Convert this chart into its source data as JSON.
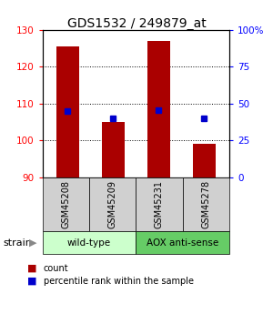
{
  "title": "GDS1532 / 249879_at",
  "samples": [
    "GSM45208",
    "GSM45209",
    "GSM45231",
    "GSM45278"
  ],
  "bar_values": [
    125.5,
    105.0,
    127.0,
    99.0
  ],
  "blue_values": [
    108.0,
    106.0,
    108.2,
    106.0
  ],
  "ylim_left": [
    90,
    130
  ],
  "ylim_right": [
    0,
    100
  ],
  "yticks_left": [
    90,
    100,
    110,
    120,
    130
  ],
  "yticks_right": [
    0,
    25,
    50,
    75,
    100
  ],
  "ytick_labels_right": [
    "0",
    "25",
    "50",
    "75",
    "100%"
  ],
  "bar_color": "#aa0000",
  "blue_color": "#0000cc",
  "group_configs": [
    {
      "label": "wild-type",
      "start": 0,
      "end": 2,
      "color": "#ccffcc"
    },
    {
      "label": "AOX anti-sense",
      "start": 2,
      "end": 4,
      "color": "#66cc66"
    }
  ],
  "gray_box_color": "#d0d0d0",
  "background_color": "#ffffff",
  "legend_items": [
    {
      "color": "#aa0000",
      "label": "count"
    },
    {
      "color": "#0000cc",
      "label": "percentile rank within the sample"
    }
  ]
}
